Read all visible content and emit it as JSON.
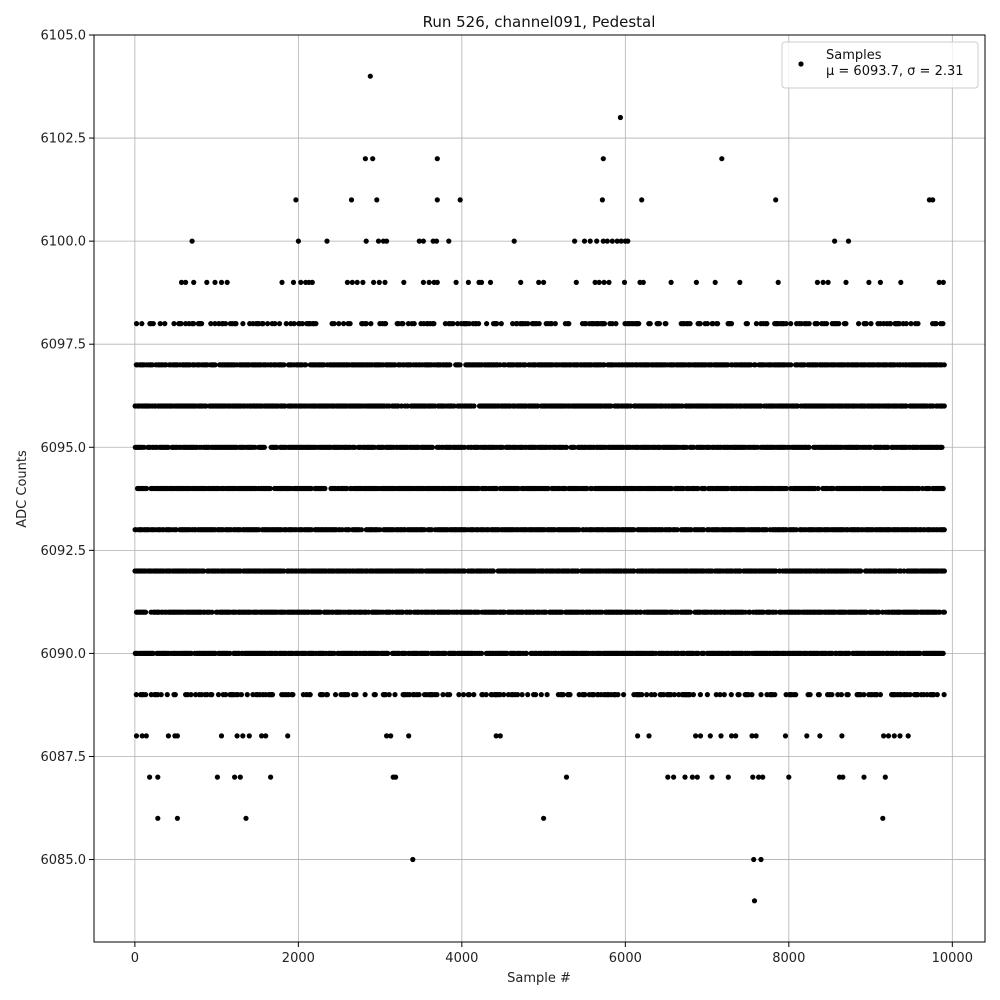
{
  "chart_data": {
    "type": "scatter",
    "title": "Run 526, channel091, Pedestal",
    "xlabel": "Sample #",
    "ylabel": "ADC Counts",
    "xlim": [
      -500,
      10400
    ],
    "ylim": [
      6083,
      6105
    ],
    "xticks": [
      0,
      2000,
      4000,
      6000,
      8000,
      10000
    ],
    "xtick_labels": [
      "0",
      "2000",
      "4000",
      "6000",
      "8000",
      "10000"
    ],
    "yticks": [
      6085.0,
      6087.5,
      6090.0,
      6092.5,
      6095.0,
      6097.5,
      6100.0,
      6102.5,
      6105.0
    ],
    "ytick_labels": [
      "6085.0",
      "6087.5",
      "6090.0",
      "6092.5",
      "6095.0",
      "6097.5",
      "6100.0",
      "6102.5",
      "6105.0"
    ],
    "grid": true,
    "legend_position": "top-right",
    "legend": {
      "label": "Samples",
      "stats": "μ = 6093.7, σ = 2.31"
    },
    "marker_color": "#000000",
    "series": [
      {
        "name": "Samples",
        "x_range": [
          0,
          9900
        ],
        "dense_levels": [
          6090,
          6091,
          6092,
          6093,
          6094,
          6095,
          6096,
          6097
        ],
        "sparse_levels": [
          6089,
          6098
        ],
        "outliers": [
          [
            2880,
            6104
          ],
          [
            5940,
            6103
          ],
          [
            2820,
            6102
          ],
          [
            2910,
            6102
          ],
          [
            3700,
            6102
          ],
          [
            5730,
            6102
          ],
          [
            7180,
            6102
          ],
          [
            1970,
            6101
          ],
          [
            2650,
            6101
          ],
          [
            2960,
            6101
          ],
          [
            3700,
            6101
          ],
          [
            3980,
            6101
          ],
          [
            5720,
            6101
          ],
          [
            6200,
            6101
          ],
          [
            7840,
            6101
          ],
          [
            9720,
            6101
          ],
          [
            9760,
            6101
          ],
          [
            700,
            6100
          ],
          [
            2000,
            6100
          ],
          [
            2350,
            6100
          ],
          [
            2830,
            6100
          ],
          [
            2980,
            6100
          ],
          [
            3040,
            6100
          ],
          [
            3080,
            6100
          ],
          [
            3480,
            6100
          ],
          [
            3530,
            6100
          ],
          [
            3650,
            6100
          ],
          [
            3690,
            6100
          ],
          [
            3840,
            6100
          ],
          [
            4640,
            6100
          ],
          [
            5380,
            6100
          ],
          [
            5500,
            6100
          ],
          [
            5570,
            6100
          ],
          [
            5650,
            6100
          ],
          [
            5730,
            6100
          ],
          [
            5780,
            6100
          ],
          [
            5840,
            6100
          ],
          [
            5900,
            6100
          ],
          [
            5950,
            6100
          ],
          [
            6000,
            6100
          ],
          [
            6030,
            6100
          ],
          [
            8560,
            6100
          ],
          [
            8730,
            6100
          ],
          [
            570,
            6099
          ],
          [
            620,
            6099
          ],
          [
            720,
            6099
          ],
          [
            880,
            6099
          ],
          [
            980,
            6099
          ],
          [
            1060,
            6099
          ],
          [
            1130,
            6099
          ],
          [
            1800,
            6099
          ],
          [
            1940,
            6099
          ],
          [
            2030,
            6099
          ],
          [
            2090,
            6099
          ],
          [
            2130,
            6099
          ],
          [
            2170,
            6099
          ],
          [
            2600,
            6099
          ],
          [
            2660,
            6099
          ],
          [
            2720,
            6099
          ],
          [
            2790,
            6099
          ],
          [
            2920,
            6099
          ],
          [
            2990,
            6099
          ],
          [
            3060,
            6099
          ],
          [
            3290,
            6099
          ],
          [
            3530,
            6099
          ],
          [
            3600,
            6099
          ],
          [
            3660,
            6099
          ],
          [
            3700,
            6099
          ],
          [
            3930,
            6099
          ],
          [
            4080,
            6099
          ],
          [
            4210,
            6099
          ],
          [
            4240,
            6099
          ],
          [
            4350,
            6099
          ],
          [
            4720,
            6099
          ],
          [
            4940,
            6099
          ],
          [
            5000,
            6099
          ],
          [
            5400,
            6099
          ],
          [
            5630,
            6099
          ],
          [
            5680,
            6099
          ],
          [
            5740,
            6099
          ],
          [
            5800,
            6099
          ],
          [
            5990,
            6099
          ],
          [
            6180,
            6099
          ],
          [
            6220,
            6099
          ],
          [
            6560,
            6099
          ],
          [
            6870,
            6099
          ],
          [
            7100,
            6099
          ],
          [
            7400,
            6099
          ],
          [
            7870,
            6099
          ],
          [
            8350,
            6099
          ],
          [
            8420,
            6099
          ],
          [
            8480,
            6099
          ],
          [
            8700,
            6099
          ],
          [
            8980,
            6099
          ],
          [
            9120,
            6099
          ],
          [
            9370,
            6099
          ],
          [
            9840,
            6099
          ],
          [
            9890,
            6099
          ],
          [
            20,
            6088
          ],
          [
            90,
            6088
          ],
          [
            140,
            6088
          ],
          [
            410,
            6088
          ],
          [
            490,
            6088
          ],
          [
            520,
            6088
          ],
          [
            1060,
            6088
          ],
          [
            1250,
            6088
          ],
          [
            1320,
            6088
          ],
          [
            1400,
            6088
          ],
          [
            1550,
            6088
          ],
          [
            1600,
            6088
          ],
          [
            1870,
            6088
          ],
          [
            3080,
            6088
          ],
          [
            3130,
            6088
          ],
          [
            3350,
            6088
          ],
          [
            4420,
            6088
          ],
          [
            4470,
            6088
          ],
          [
            6150,
            6088
          ],
          [
            6290,
            6088
          ],
          [
            6860,
            6088
          ],
          [
            6920,
            6088
          ],
          [
            7040,
            6088
          ],
          [
            7170,
            6088
          ],
          [
            7300,
            6088
          ],
          [
            7350,
            6088
          ],
          [
            7550,
            6088
          ],
          [
            7600,
            6088
          ],
          [
            7960,
            6088
          ],
          [
            8220,
            6088
          ],
          [
            8380,
            6088
          ],
          [
            8650,
            6088
          ],
          [
            9160,
            6088
          ],
          [
            9220,
            6088
          ],
          [
            9290,
            6088
          ],
          [
            9360,
            6088
          ],
          [
            9460,
            6088
          ],
          [
            180,
            6087
          ],
          [
            280,
            6087
          ],
          [
            1010,
            6087
          ],
          [
            1220,
            6087
          ],
          [
            1290,
            6087
          ],
          [
            1660,
            6087
          ],
          [
            3160,
            6087
          ],
          [
            3190,
            6087
          ],
          [
            5280,
            6087
          ],
          [
            6520,
            6087
          ],
          [
            6590,
            6087
          ],
          [
            6730,
            6087
          ],
          [
            6820,
            6087
          ],
          [
            6880,
            6087
          ],
          [
            7060,
            6087
          ],
          [
            7260,
            6087
          ],
          [
            7560,
            6087
          ],
          [
            7630,
            6087
          ],
          [
            7680,
            6087
          ],
          [
            8000,
            6087
          ],
          [
            8620,
            6087
          ],
          [
            8660,
            6087
          ],
          [
            8920,
            6087
          ],
          [
            9180,
            6087
          ],
          [
            280,
            6086
          ],
          [
            520,
            6086
          ],
          [
            1360,
            6086
          ],
          [
            5000,
            6086
          ],
          [
            9150,
            6086
          ],
          [
            3400,
            6085
          ],
          [
            7570,
            6085
          ],
          [
            7660,
            6085
          ],
          [
            7580,
            6084
          ]
        ]
      }
    ]
  }
}
